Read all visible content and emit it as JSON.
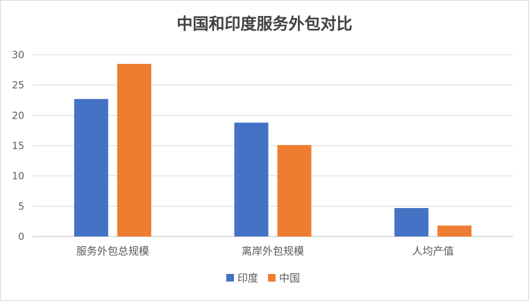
{
  "chart_data": {
    "type": "bar",
    "title": "中国和印度服务外包对比",
    "xlabel": "",
    "ylabel": "",
    "categories": [
      "服务外包总规模",
      "离岸外包规模",
      "人均产值"
    ],
    "series": [
      {
        "name": "印度",
        "color": "#4472c4",
        "values": [
          22.7,
          18.8,
          4.7
        ]
      },
      {
        "name": "中国",
        "color": "#ed7d31",
        "values": [
          28.5,
          15.1,
          1.8
        ]
      }
    ],
    "ylim": [
      0,
      30
    ],
    "yticks": [
      "0",
      "5",
      "10",
      "15",
      "20",
      "25",
      "30"
    ],
    "grid": true,
    "legend_position": "bottom"
  }
}
